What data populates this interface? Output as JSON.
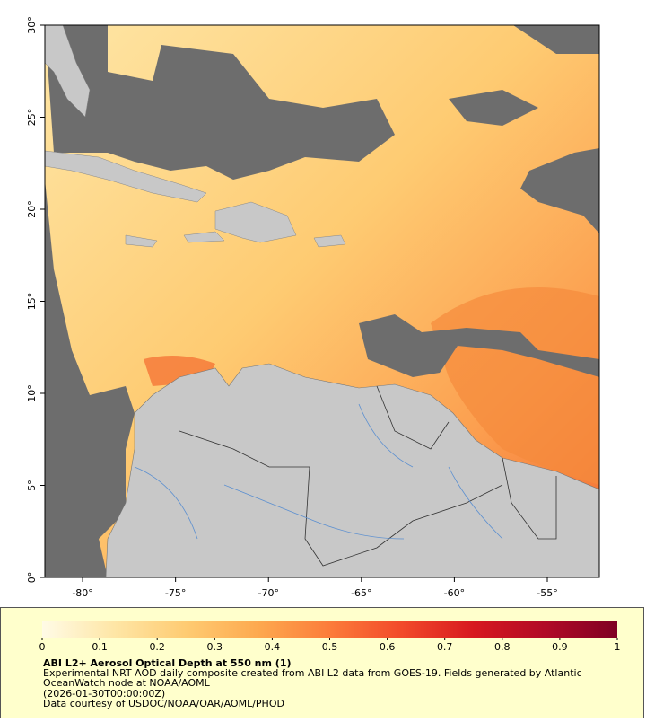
{
  "map": {
    "lonlim": [
      -82.03,
      -52.2
    ],
    "latlim": [
      0,
      30
    ],
    "lon_ticks": [
      {
        "value": -80,
        "label": "-80°"
      },
      {
        "value": -75,
        "label": "-75°"
      },
      {
        "value": -70,
        "label": "-70°"
      },
      {
        "value": -65,
        "label": "-65°"
      },
      {
        "value": -60,
        "label": "-60°"
      },
      {
        "value": -55,
        "label": "-55°"
      }
    ],
    "lat_ticks": [
      {
        "value": 0,
        "label": "0°"
      },
      {
        "value": 5,
        "label": "5°"
      },
      {
        "value": 10,
        "label": "10°"
      },
      {
        "value": 15,
        "label": "15°"
      },
      {
        "value": 20,
        "label": "20°"
      },
      {
        "value": 25,
        "label": "25°"
      },
      {
        "value": 30,
        "label": "30°"
      }
    ]
  },
  "colorbar": {
    "range": [
      0,
      1
    ],
    "ticks": [
      0,
      0.1,
      0.2,
      0.3,
      0.4,
      0.5,
      0.6,
      0.7,
      0.8,
      0.9,
      1
    ],
    "colors": [
      "#fffbe6",
      "#fee6a6",
      "#fecb72",
      "#fda94f",
      "#fc7c3a",
      "#f24a2a",
      "#d7191f",
      "#b10a26",
      "#7f0024"
    ]
  },
  "caption": {
    "title": "ABI L2+ Aerosol Optical Depth at 550 nm (1)",
    "lines": [
      "Experimental NRT AOD daily composite created from ABI L2 data from GOES-19. Fields generated by Atlantic",
      "OceanWatch node at NOAA/AOML",
      "(2026-01-30T00:00:00Z)",
      "Data courtesy of USDOC/NOAA/OAR/AOML/PHOD"
    ]
  }
}
